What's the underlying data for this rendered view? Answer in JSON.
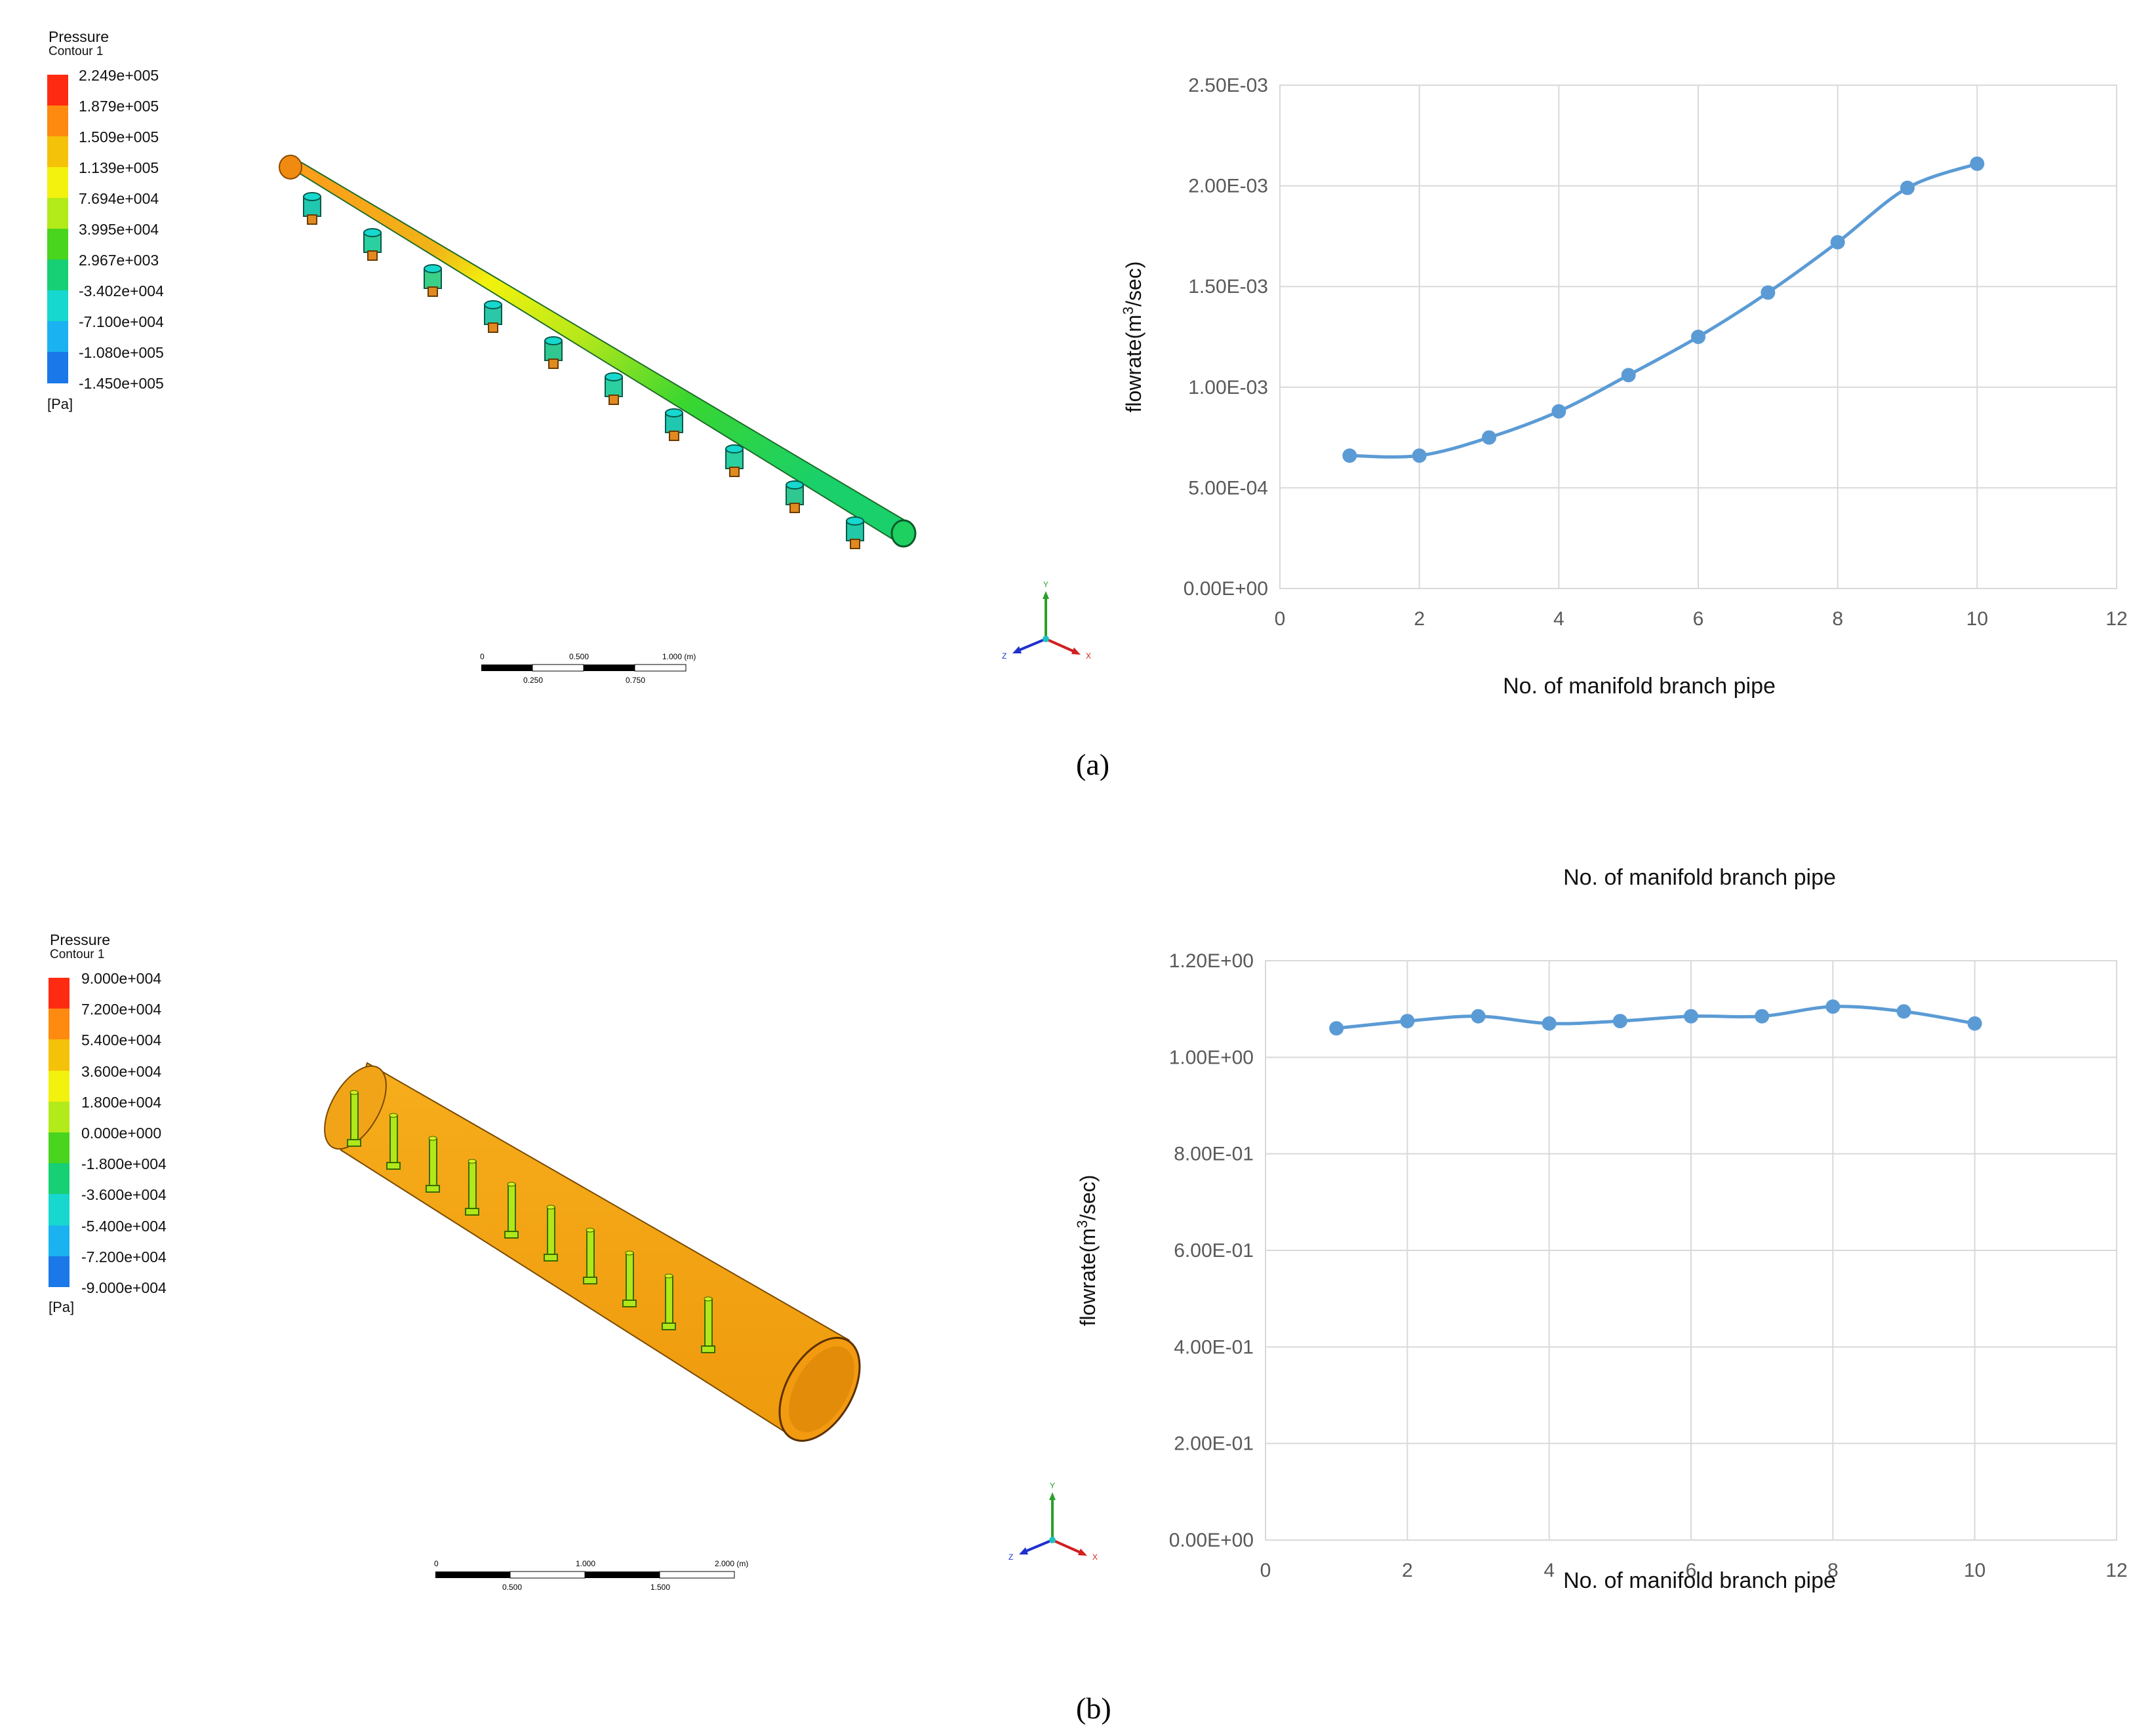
{
  "panels": [
    {
      "id": "a",
      "label": "(a)",
      "legend": {
        "title": "Pressure",
        "subtitle": "Contour 1",
        "unit": "[Pa]",
        "values": [
          "2.249e+005",
          "1.879e+005",
          "1.509e+005",
          "1.139e+005",
          "7.694e+004",
          "3.995e+004",
          "2.967e+003",
          "-3.402e+004",
          "-7.100e+004",
          "-1.080e+005",
          "-1.450e+005"
        ],
        "colors": [
          "#ff2a12",
          "#ff8a10",
          "#f5c20a",
          "#f2f20e",
          "#b3ea1a",
          "#49d41e",
          "#17cf74",
          "#16d8ce",
          "#1ab2f0",
          "#1b78e8",
          "#1330e8"
        ]
      },
      "scale_bar": {
        "ticks_top": [
          "0",
          "0.500",
          "1.000 (m)"
        ],
        "ticks_bottom": [
          "0.250",
          "0.750"
        ]
      },
      "axis_triad": {
        "x": "X",
        "y": "Y",
        "z": "Z"
      }
    },
    {
      "id": "b",
      "label": "(b)",
      "legend": {
        "title": "Pressure",
        "subtitle": "Contour 1",
        "unit": "[Pa]",
        "values": [
          "9.000e+004",
          "7.200e+004",
          "5.400e+004",
          "3.600e+004",
          "1.800e+004",
          "0.000e+000",
          "-1.800e+004",
          "-3.600e+004",
          "-5.400e+004",
          "-7.200e+004",
          "-9.000e+004"
        ],
        "colors": [
          "#ff2a12",
          "#ff8a10",
          "#f5c20a",
          "#f2f20e",
          "#b3ea1a",
          "#49d41e",
          "#17cf74",
          "#16d8ce",
          "#1ab2f0",
          "#1b78e8",
          "#1330e8"
        ]
      },
      "scale_bar": {
        "ticks_top": [
          "0",
          "1.000",
          "2.000 (m)"
        ],
        "ticks_bottom": [
          "0.500",
          "1.500"
        ]
      },
      "axis_triad": {
        "x": "X",
        "y": "Y",
        "z": "Z"
      }
    }
  ],
  "chart_data": [
    {
      "type": "line",
      "xlabel": "No. of manifold branch pipe",
      "ylabel": "flowrate(m3/sec)",
      "x": [
        1,
        2,
        3,
        4,
        5,
        6,
        7,
        8,
        9,
        10
      ],
      "series": [
        {
          "values": [
            0.00066,
            0.00066,
            0.00075,
            0.00088,
            0.00106,
            0.00125,
            0.00147,
            0.00172,
            0.00199,
            0.00211
          ]
        }
      ],
      "xlim": [
        0,
        12
      ],
      "ylim": [
        0,
        0.0025
      ],
      "x_ticks": [
        "0",
        "2",
        "4",
        "6",
        "8",
        "10",
        "12"
      ],
      "y_ticks": [
        "0.00E+00",
        "5.00E-04",
        "1.00E-03",
        "1.50E-03",
        "2.00E-03",
        "2.50E-03"
      ],
      "grid": true,
      "color": "#5b9bd5"
    },
    {
      "type": "line",
      "xlabel": "No. of manifold branch pipe",
      "xlabel_top": "No. of manifold branch pipe",
      "ylabel": "flowrate(m3/sec)",
      "x": [
        1,
        2,
        3,
        4,
        5,
        6,
        7,
        8,
        9,
        10
      ],
      "series": [
        {
          "values": [
            1.06,
            1.075,
            1.085,
            1.07,
            1.075,
            1.085,
            1.085,
            1.105,
            1.095,
            1.07
          ]
        }
      ],
      "xlim": [
        0,
        12
      ],
      "ylim": [
        0,
        1.2
      ],
      "x_ticks": [
        "0",
        "2",
        "4",
        "6",
        "8",
        "10",
        "12"
      ],
      "y_ticks": [
        "0.00E+00",
        "2.00E-01",
        "4.00E-01",
        "6.00E-01",
        "8.00E-01",
        "1.00E+00",
        "1.20E+00"
      ],
      "grid": true,
      "color": "#5b9bd5"
    }
  ]
}
